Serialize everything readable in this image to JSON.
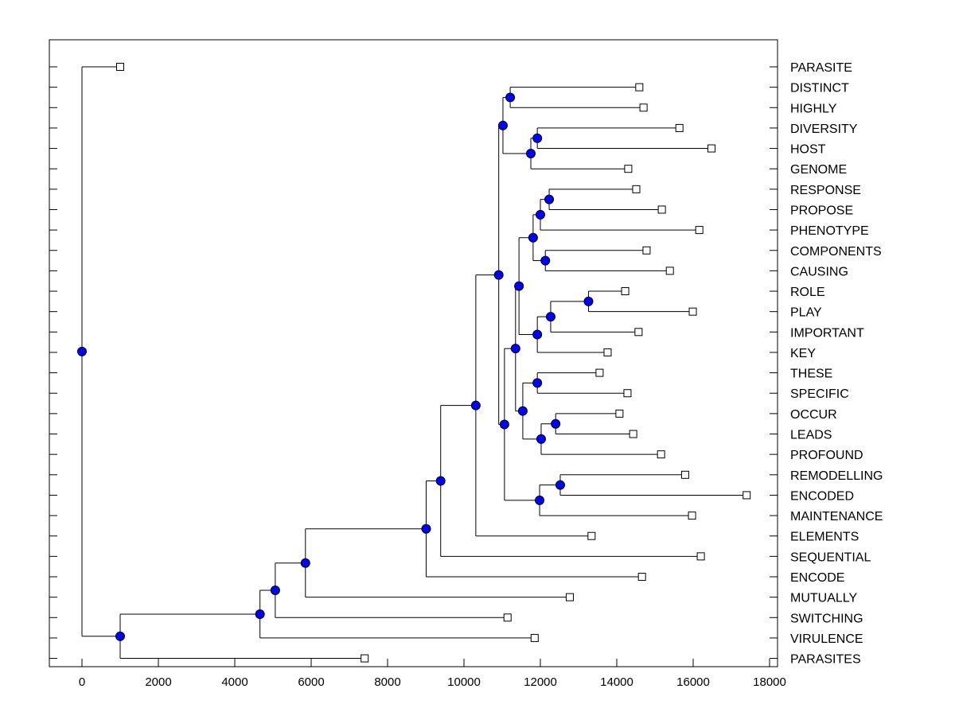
{
  "chart_data": {
    "type": "dendrogram",
    "title": "",
    "xlabel": "",
    "ylabel": "",
    "xlim": [
      -900,
      18300
    ],
    "xticks": [
      0,
      2000,
      4000,
      6000,
      8000,
      10000,
      12000,
      14000,
      16000,
      18000
    ],
    "grid": false,
    "colors": {
      "node": "#0000ff",
      "leaf": "#ffffff",
      "line": "#000000"
    },
    "tree": {
      "h": 0,
      "c": [
        {
          "label": "PARASITE",
          "v": 1000
        },
        {
          "h": 1000,
          "c": [
            {
              "h": 4660,
              "c": [
                {
                  "h": 5060,
                  "c": [
                    {
                      "h": 5850,
                      "c": [
                        {
                          "h": 9010,
                          "c": [
                            {
                              "h": 9390,
                              "c": [
                                {
                                  "h": 10310,
                                  "c": [
                                    {
                                      "h": 10910,
                                      "c": [
                                        {
                                          "h": 11020,
                                          "c": [
                                            {
                                              "h": 11210,
                                              "c": [
                                                {
                                                  "label": "DISTINCT",
                                                  "v": 14590
                                                },
                                                {
                                                  "label": "HIGHLY",
                                                  "v": 14700
                                                }
                                              ]
                                            },
                                            {
                                              "h": 11750,
                                              "c": [
                                                {
                                                  "h": 11920,
                                                  "c": [
                                                    {
                                                      "label": "DIVERSITY",
                                                      "v": 15640
                                                    },
                                                    {
                                                      "label": "HOST",
                                                      "v": 16480
                                                    }
                                                  ]
                                                },
                                                {
                                                  "label": "GENOME",
                                                  "v": 14300
                                                }
                                              ]
                                            }
                                          ]
                                        },
                                        {
                                          "h": 11060,
                                          "c": [
                                            {
                                              "h": 11350,
                                              "c": [
                                                {
                                                  "h": 11440,
                                                  "c": [
                                                    {
                                                      "h": 11810,
                                                      "c": [
                                                        {
                                                          "h": 12000,
                                                          "c": [
                                                            {
                                                              "h": 12230,
                                                              "c": [
                                                                {
                                                                  "label": "RESPONSE",
                                                                  "v": 14510
                                                                },
                                                                {
                                                                  "label": "PROPOSE",
                                                                  "v": 15180
                                                                }
                                                              ]
                                                            },
                                                            {
                                                              "label": "PHENOTYPE",
                                                              "v": 16160
                                                            }
                                                          ]
                                                        },
                                                        {
                                                          "h": 12130,
                                                          "c": [
                                                            {
                                                              "label": "COMPONENTS",
                                                              "v": 14780
                                                            },
                                                            {
                                                              "label": "CAUSING",
                                                              "v": 15390
                                                            }
                                                          ]
                                                        }
                                                      ]
                                                    },
                                                    {
                                                      "h": 11920,
                                                      "c": [
                                                        {
                                                          "h": 12270,
                                                          "c": [
                                                            {
                                                              "h": 13260,
                                                              "c": [
                                                                {
                                                                  "label": "ROLE",
                                                                  "v": 14220
                                                                },
                                                                {
                                                                  "label": "PLAY",
                                                                  "v": 15990
                                                                }
                                                              ]
                                                            },
                                                            {
                                                              "label": "IMPORTANT",
                                                              "v": 14570
                                                            }
                                                          ]
                                                        },
                                                        {
                                                          "label": "KEY",
                                                          "v": 13760
                                                        }
                                                      ]
                                                    }
                                                  ]
                                                },
                                                {
                                                  "h": 11540,
                                                  "c": [
                                                    {
                                                      "h": 11920,
                                                      "c": [
                                                        {
                                                          "label": "THESE",
                                                          "v": 13550
                                                        },
                                                        {
                                                          "label": "SPECIFIC",
                                                          "v": 14280
                                                        }
                                                      ]
                                                    },
                                                    {
                                                      "h": 12020,
                                                      "c": [
                                                        {
                                                          "h": 12400,
                                                          "c": [
                                                            {
                                                              "label": "OCCUR",
                                                              "v": 14070
                                                            },
                                                            {
                                                              "label": "LEADS",
                                                              "v": 14430
                                                            }
                                                          ]
                                                        },
                                                        {
                                                          "label": "PROFOUND",
                                                          "v": 15160
                                                        }
                                                      ]
                                                    }
                                                  ]
                                                }
                                              ]
                                            },
                                            {
                                              "h": 11980,
                                              "c": [
                                                {
                                                  "h": 12520,
                                                  "c": [
                                                    {
                                                      "label": "REMODELLING",
                                                      "v": 15790
                                                    },
                                                    {
                                                      "label": "ENCODED",
                                                      "v": 17400
                                                    }
                                                  ]
                                                },
                                                {
                                                  "label": "MAINTENANCE",
                                                  "v": 15970
                                                }
                                              ]
                                            }
                                          ]
                                        }
                                      ]
                                    },
                                    {
                                      "label": "ELEMENTS",
                                      "v": 13340
                                    }
                                  ]
                                },
                                {
                                  "label": "SEQUENTIAL",
                                  "v": 16200
                                }
                              ]
                            },
                            {
                              "label": "ENCODE",
                              "v": 14660
                            }
                          ]
                        },
                        {
                          "label": "MUTUALLY",
                          "v": 12770
                        }
                      ]
                    },
                    {
                      "label": "SWITCHING",
                      "v": 11140
                    }
                  ]
                },
                {
                  "label": "VIRULENCE",
                  "v": 11850
                }
              ]
            },
            {
              "label": "PARASITES",
              "v": 7400
            }
          ]
        }
      ]
    }
  }
}
